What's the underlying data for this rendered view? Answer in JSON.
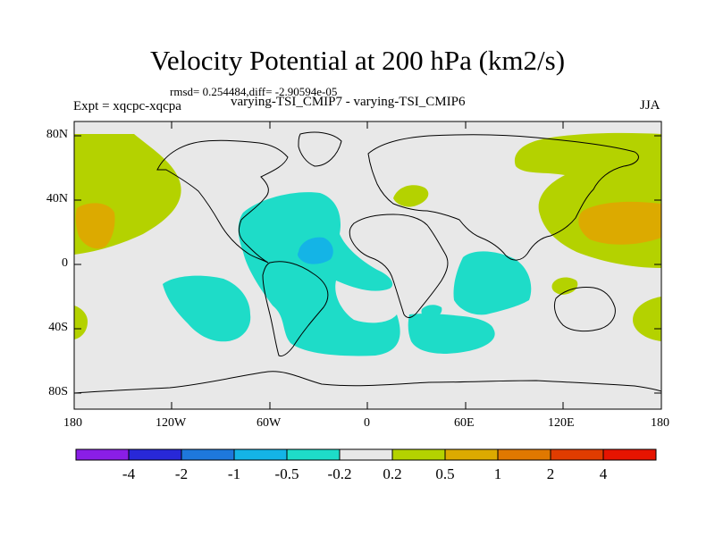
{
  "title": "Velocity Potential at 200 hPa (km2/s)",
  "stats": "rmsd= 0.254484,diff= -2.90594e-05",
  "experiment": "Expt = xqcpc-xqcpa",
  "difference_label": "varying-TSI_CMIP7 - varying-TSI_CMIP6",
  "season": "JJA",
  "y_axis": {
    "labels": [
      "80N",
      "40N",
      "0",
      "40S",
      "80S"
    ]
  },
  "x_axis": {
    "labels": [
      "180",
      "120W",
      "60W",
      "0",
      "60E",
      "120E",
      "180"
    ]
  },
  "colorbar": {
    "labels": [
      "-4",
      "-2",
      "-1",
      "-0.5",
      "-0.2",
      "0.2",
      "0.5",
      "1",
      "2",
      "4"
    ],
    "colors": [
      "#8a1ee6",
      "#2828d8",
      "#1e78dc",
      "#14b4e6",
      "#1edcc8",
      "#e8e8e8",
      "#b4d200",
      "#dcaa00",
      "#e07800",
      "#e03c00",
      "#e61400"
    ]
  },
  "palette": {
    "ocean_background": "#e8e8e8",
    "positive_low": "#b4d200",
    "positive_mid": "#dcaa00",
    "negative_low": "#1edcc8",
    "negative_mid": "#14b4e6"
  }
}
